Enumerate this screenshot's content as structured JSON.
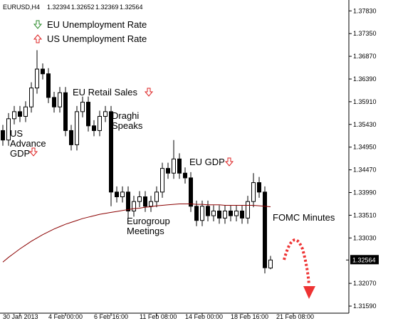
{
  "chart_data": {
    "type": "candlestick",
    "symbol": "EURUSD,H4",
    "legend": [
      "EU Unemployment Rate",
      "US Unemployment Rate"
    ],
    "annotations": [
      "US\nAdvance\nGDP",
      "EU Retail Sales",
      "Draghi\nSpeaks",
      "EU GDP",
      "Eurogroup\nMeetings",
      "FOMC Minutes"
    ],
    "ylim": [
      1.3144,
      1.3806
    ],
    "yticks": [
      {
        "value": 1.3783,
        "label": "1.37830"
      },
      {
        "value": 1.3735,
        "label": "1.37350"
      },
      {
        "value": 1.3687,
        "label": "1.36870"
      },
      {
        "value": 1.3639,
        "label": "1.36390"
      },
      {
        "value": 1.3591,
        "label": "1.35910"
      },
      {
        "value": 1.3543,
        "label": "1.35430"
      },
      {
        "value": 1.3495,
        "label": "1.34950"
      },
      {
        "value": 1.3447,
        "label": "1.34470"
      },
      {
        "value": 1.3399,
        "label": "1.33990"
      },
      {
        "value": 1.3351,
        "label": "1.33510"
      },
      {
        "value": 1.3303,
        "label": "1.33030"
      },
      {
        "value": 1.3207,
        "label": "1.32070"
      },
      {
        "value": 1.3159,
        "label": "1.31590"
      }
    ],
    "xticks": [
      {
        "value": 3,
        "label": "30 Jan 2013"
      },
      {
        "value": 11,
        "label": "4 Feb 00:00"
      },
      {
        "value": 19,
        "label": "6 Feb 16:00"
      },
      {
        "value": 27,
        "label": "11 Feb 08:00"
      },
      {
        "value": 35,
        "label": "14 Feb 00:00"
      },
      {
        "value": 43,
        "label": "18 Feb 16:00"
      },
      {
        "value": 51,
        "label": "21 Feb 08:00"
      }
    ],
    "open": [
      1.353,
      1.351,
      1.3555,
      1.357,
      1.356,
      1.358,
      1.362,
      1.366,
      1.365,
      1.36,
      1.358,
      1.361,
      1.353,
      1.35,
      1.357,
      1.359,
      1.354,
      1.353,
      1.356,
      1.357,
      1.34,
      1.339,
      1.34,
      1.336,
      1.338,
      1.339,
      1.337,
      1.338,
      1.34,
      1.345,
      1.344,
      1.347,
      1.344,
      1.343,
      1.337,
      1.334,
      1.337,
      1.335,
      1.336,
      1.3345,
      1.336,
      1.335,
      1.336,
      1.3345,
      1.338,
      1.342,
      1.34,
      1.32394
    ],
    "high": [
      1.3542,
      1.3567,
      1.3582,
      1.3582,
      1.3592,
      1.3632,
      1.37,
      1.3672,
      1.3662,
      1.3612,
      1.3622,
      1.3622,
      1.3542,
      1.3582,
      1.3602,
      1.3602,
      1.3552,
      1.3572,
      1.3582,
      1.3582,
      1.3412,
      1.3412,
      1.3412,
      1.3392,
      1.3402,
      1.3402,
      1.3392,
      1.3412,
      1.3462,
      1.3462,
      1.351,
      1.3482,
      1.3452,
      1.3442,
      1.3382,
      1.3382,
      1.3382,
      1.3372,
      1.3372,
      1.3372,
      1.3372,
      1.3372,
      1.3372,
      1.3392,
      1.344,
      1.3432,
      1.3412,
      1.32652
    ],
    "low": [
      1.3498,
      1.3498,
      1.3543,
      1.3548,
      1.3548,
      1.3568,
      1.3608,
      1.3638,
      1.3588,
      1.3568,
      1.3568,
      1.3518,
      1.3488,
      1.3488,
      1.3558,
      1.3528,
      1.3518,
      1.3518,
      1.3548,
      1.337,
      1.3378,
      1.3378,
      1.3345,
      1.3348,
      1.3368,
      1.3358,
      1.3358,
      1.3368,
      1.3388,
      1.3428,
      1.3428,
      1.3428,
      1.3418,
      1.3358,
      1.3328,
      1.3328,
      1.3338,
      1.3338,
      1.3333,
      1.3333,
      1.3338,
      1.3338,
      1.3333,
      1.3333,
      1.3368,
      1.3388,
      1.3228,
      1.32369
    ],
    "close": [
      1.351,
      1.3555,
      1.357,
      1.356,
      1.358,
      1.362,
      1.366,
      1.365,
      1.36,
      1.358,
      1.361,
      1.353,
      1.35,
      1.357,
      1.359,
      1.354,
      1.353,
      1.356,
      1.357,
      1.34,
      1.339,
      1.34,
      1.336,
      1.338,
      1.339,
      1.337,
      1.338,
      1.34,
      1.345,
      1.344,
      1.347,
      1.344,
      1.343,
      1.337,
      1.334,
      1.337,
      1.335,
      1.336,
      1.3345,
      1.336,
      1.335,
      1.336,
      1.3345,
      1.338,
      1.342,
      1.34,
      1.324,
      1.32564
    ],
    "moving_average": {
      "color": "#8b0000",
      "values": [
        1.3252,
        1.3262,
        1.3271,
        1.328,
        1.3288,
        1.3296,
        1.3303,
        1.331,
        1.3316,
        1.3322,
        1.3327,
        1.3332,
        1.3336,
        1.334,
        1.3344,
        1.3347,
        1.335,
        1.3353,
        1.3355,
        1.3357,
        1.3359,
        1.3361,
        1.3363,
        1.3365,
        1.3366,
        1.3368,
        1.3369,
        1.3371,
        1.3372,
        1.3373,
        1.3374,
        1.3375,
        1.3375,
        1.3375,
        1.3374,
        1.3374,
        1.3373,
        1.3373,
        1.3373,
        1.3372,
        1.3372,
        1.3372,
        1.3372,
        1.3372,
        1.3372,
        1.3371,
        1.337,
        1.3369
      ]
    }
  }
}
